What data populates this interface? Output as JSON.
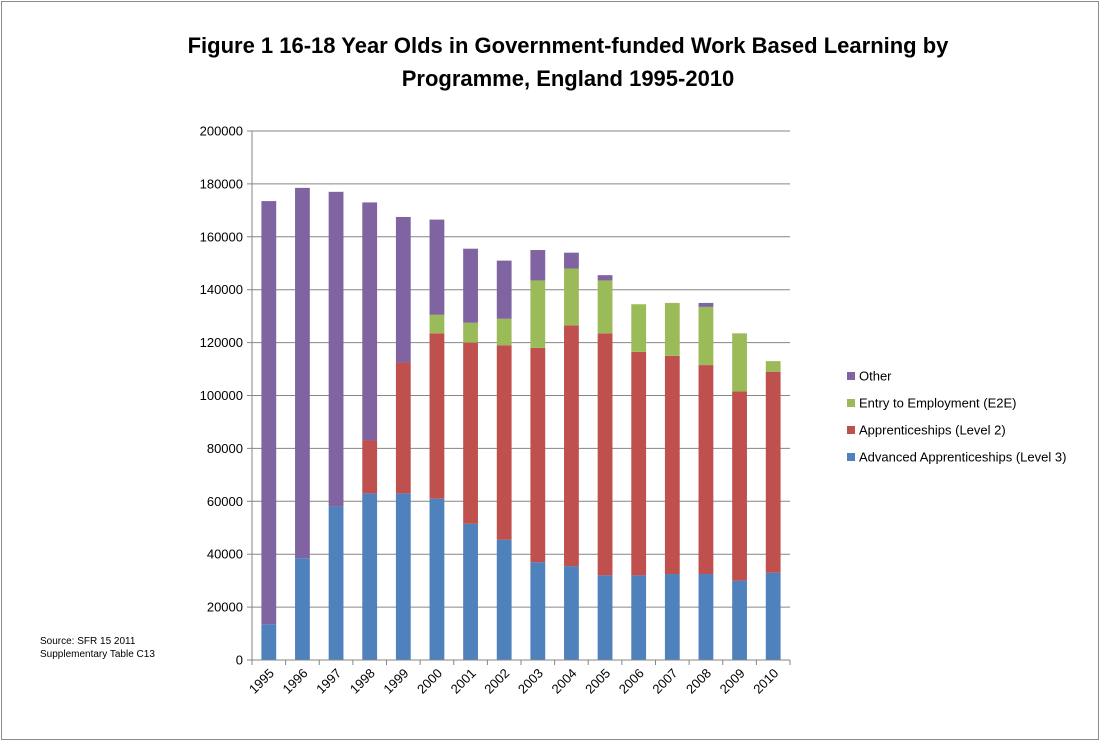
{
  "chart_data": {
    "type": "bar",
    "stacked": true,
    "title_lines": [
      "Figure 1 16-18 Year Olds in Government-funded Work Based Learning by",
      "Programme, England 1995-2010"
    ],
    "xlabel": "",
    "ylabel": "",
    "ylim": [
      0,
      200000
    ],
    "yticks": [
      "0",
      "20000",
      "40000",
      "60000",
      "80000",
      "100000",
      "120000",
      "140000",
      "160000",
      "180000",
      "200000"
    ],
    "grid": "horizontal",
    "legend_position": "right",
    "categories": [
      "1995",
      "1996",
      "1997",
      "1998",
      "1999",
      "2000",
      "2001",
      "2002",
      "2003",
      "2004",
      "2005",
      "2006",
      "2007",
      "2008",
      "2009",
      "2010"
    ],
    "series": [
      {
        "name": "Advanced Apprenticeships (Level 3)",
        "color": "#4f81bd",
        "values": [
          13500,
          38500,
          58000,
          63000,
          63000,
          61000,
          51500,
          45500,
          37000,
          35500,
          32000,
          32000,
          32500,
          32500,
          30000,
          33000
        ]
      },
      {
        "name": "Apprenticeships (Level 2)",
        "color": "#c0504d",
        "values": [
          0,
          0,
          0,
          20000,
          49500,
          62500,
          68500,
          73500,
          81000,
          91000,
          91500,
          84500,
          82500,
          79000,
          71500,
          76000
        ]
      },
      {
        "name": "Entry to Employment (E2E)",
        "color": "#9bbb59",
        "values": [
          0,
          0,
          0,
          0,
          0,
          7000,
          7500,
          10000,
          25500,
          21500,
          20000,
          18000,
          20000,
          22000,
          22000,
          4000
        ]
      },
      {
        "name": "Other",
        "color": "#8064a2",
        "values": [
          160000,
          140000,
          119000,
          90000,
          55000,
          36000,
          28000,
          22000,
          11500,
          6000,
          2000,
          0,
          0,
          1500,
          0,
          0
        ]
      }
    ],
    "legend_order": [
      "Other",
      "Entry to Employment (E2E)",
      "Apprenticeships (Level 2)",
      "Advanced Apprenticeships (Level 3)"
    ],
    "source_note": [
      "Source: SFR 15 2011",
      "Supplementary Table C13"
    ]
  }
}
